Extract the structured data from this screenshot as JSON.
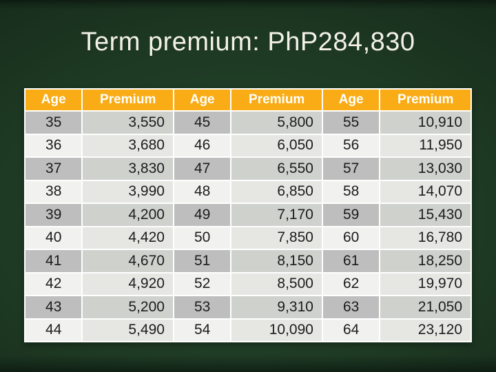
{
  "title": "Term premium: PhP284,830",
  "colors": {
    "background_mid_green": "#1e3a24",
    "background_light_green": "#28462e",
    "background_dark_green": "#162b1b",
    "header_orange": "#F9AC15",
    "header_text": "#FFFFFF",
    "body_text": "#1c1c1c",
    "title_text": "#F3F1E8",
    "row_dark_age": "#BEBEBE",
    "row_dark_premium": "#CFD1CD",
    "row_light_age": "#F1F1F0",
    "row_light_premium": "#E6E7E3",
    "grid_white": "#FFFFFF"
  },
  "table": {
    "headers": [
      "Age",
      "Premium",
      "Age",
      "Premium",
      "Age",
      "Premium"
    ],
    "rows": [
      [
        "35",
        "3,550",
        "45",
        "5,800",
        "55",
        "10,910"
      ],
      [
        "36",
        "3,680",
        "46",
        "6,050",
        "56",
        "11,950"
      ],
      [
        "37",
        "3,830",
        "47",
        "6,550",
        "57",
        "13,030"
      ],
      [
        "38",
        "3,990",
        "48",
        "6,850",
        "58",
        "14,070"
      ],
      [
        "39",
        "4,200",
        "49",
        "7,170",
        "59",
        "15,430"
      ],
      [
        "40",
        "4,420",
        "50",
        "7,850",
        "60",
        "16,780"
      ],
      [
        "41",
        "4,670",
        "51",
        "8,150",
        "61",
        "18,250"
      ],
      [
        "42",
        "4,920",
        "52",
        "8,500",
        "62",
        "19,970"
      ],
      [
        "43",
        "5,200",
        "53",
        "9,310",
        "63",
        "21,050"
      ],
      [
        "44",
        "5,490",
        "54",
        "10,090",
        "64",
        "23,120"
      ]
    ]
  }
}
